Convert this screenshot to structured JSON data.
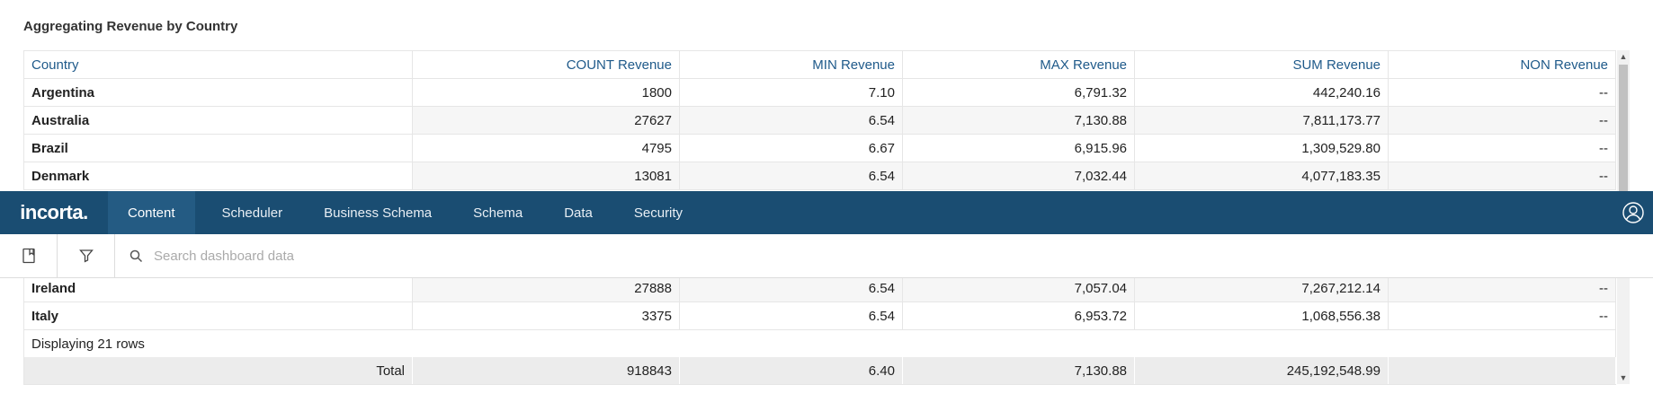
{
  "widget": {
    "title": "Aggregating Revenue by Country"
  },
  "table": {
    "columns": [
      "Country",
      "COUNT Revenue",
      "MIN Revenue",
      "MAX Revenue",
      "SUM Revenue",
      "NON Revenue"
    ],
    "rows_top": [
      [
        "Argentina",
        "1800",
        "7.10",
        "6,791.32",
        "442,240.16",
        "--"
      ],
      [
        "Australia",
        "27627",
        "6.54",
        "7,130.88",
        "7,811,173.77",
        "--"
      ],
      [
        "Brazil",
        "4795",
        "6.67",
        "6,915.96",
        "1,309,529.80",
        "--"
      ],
      [
        "Denmark",
        "13081",
        "6.54",
        "7,032.44",
        "4,077,183.35",
        "--"
      ]
    ],
    "rows_bottom": [
      [
        "Ireland",
        "27888",
        "6.54",
        "7,057.04",
        "7,267,212.14",
        "--"
      ],
      [
        "Italy",
        "3375",
        "6.54",
        "6,953.72",
        "1,068,556.38",
        "--"
      ]
    ],
    "displaying": "Displaying 21 rows",
    "total": {
      "label": "Total",
      "count": "918843",
      "min": "6.40",
      "max": "7,130.88",
      "sum": "245,192,548.99",
      "non": ""
    }
  },
  "nav": {
    "logo": "incorta.",
    "items": [
      {
        "label": "Content",
        "active": true
      },
      {
        "label": "Scheduler"
      },
      {
        "label": "Business Schema"
      },
      {
        "label": "Schema"
      },
      {
        "label": "Data"
      },
      {
        "label": "Security"
      }
    ],
    "user_icon": "user-circle-icon"
  },
  "toolbar": {
    "bookmark_icon": "bookmark-icon",
    "filter_icon": "filter-icon",
    "search_icon": "search-icon",
    "search_placeholder": "Search dashboard data",
    "search_value": ""
  },
  "colors": {
    "nav_bg": "#1a4d72",
    "nav_active": "#245b83",
    "header_text": "#1f5a8a"
  }
}
